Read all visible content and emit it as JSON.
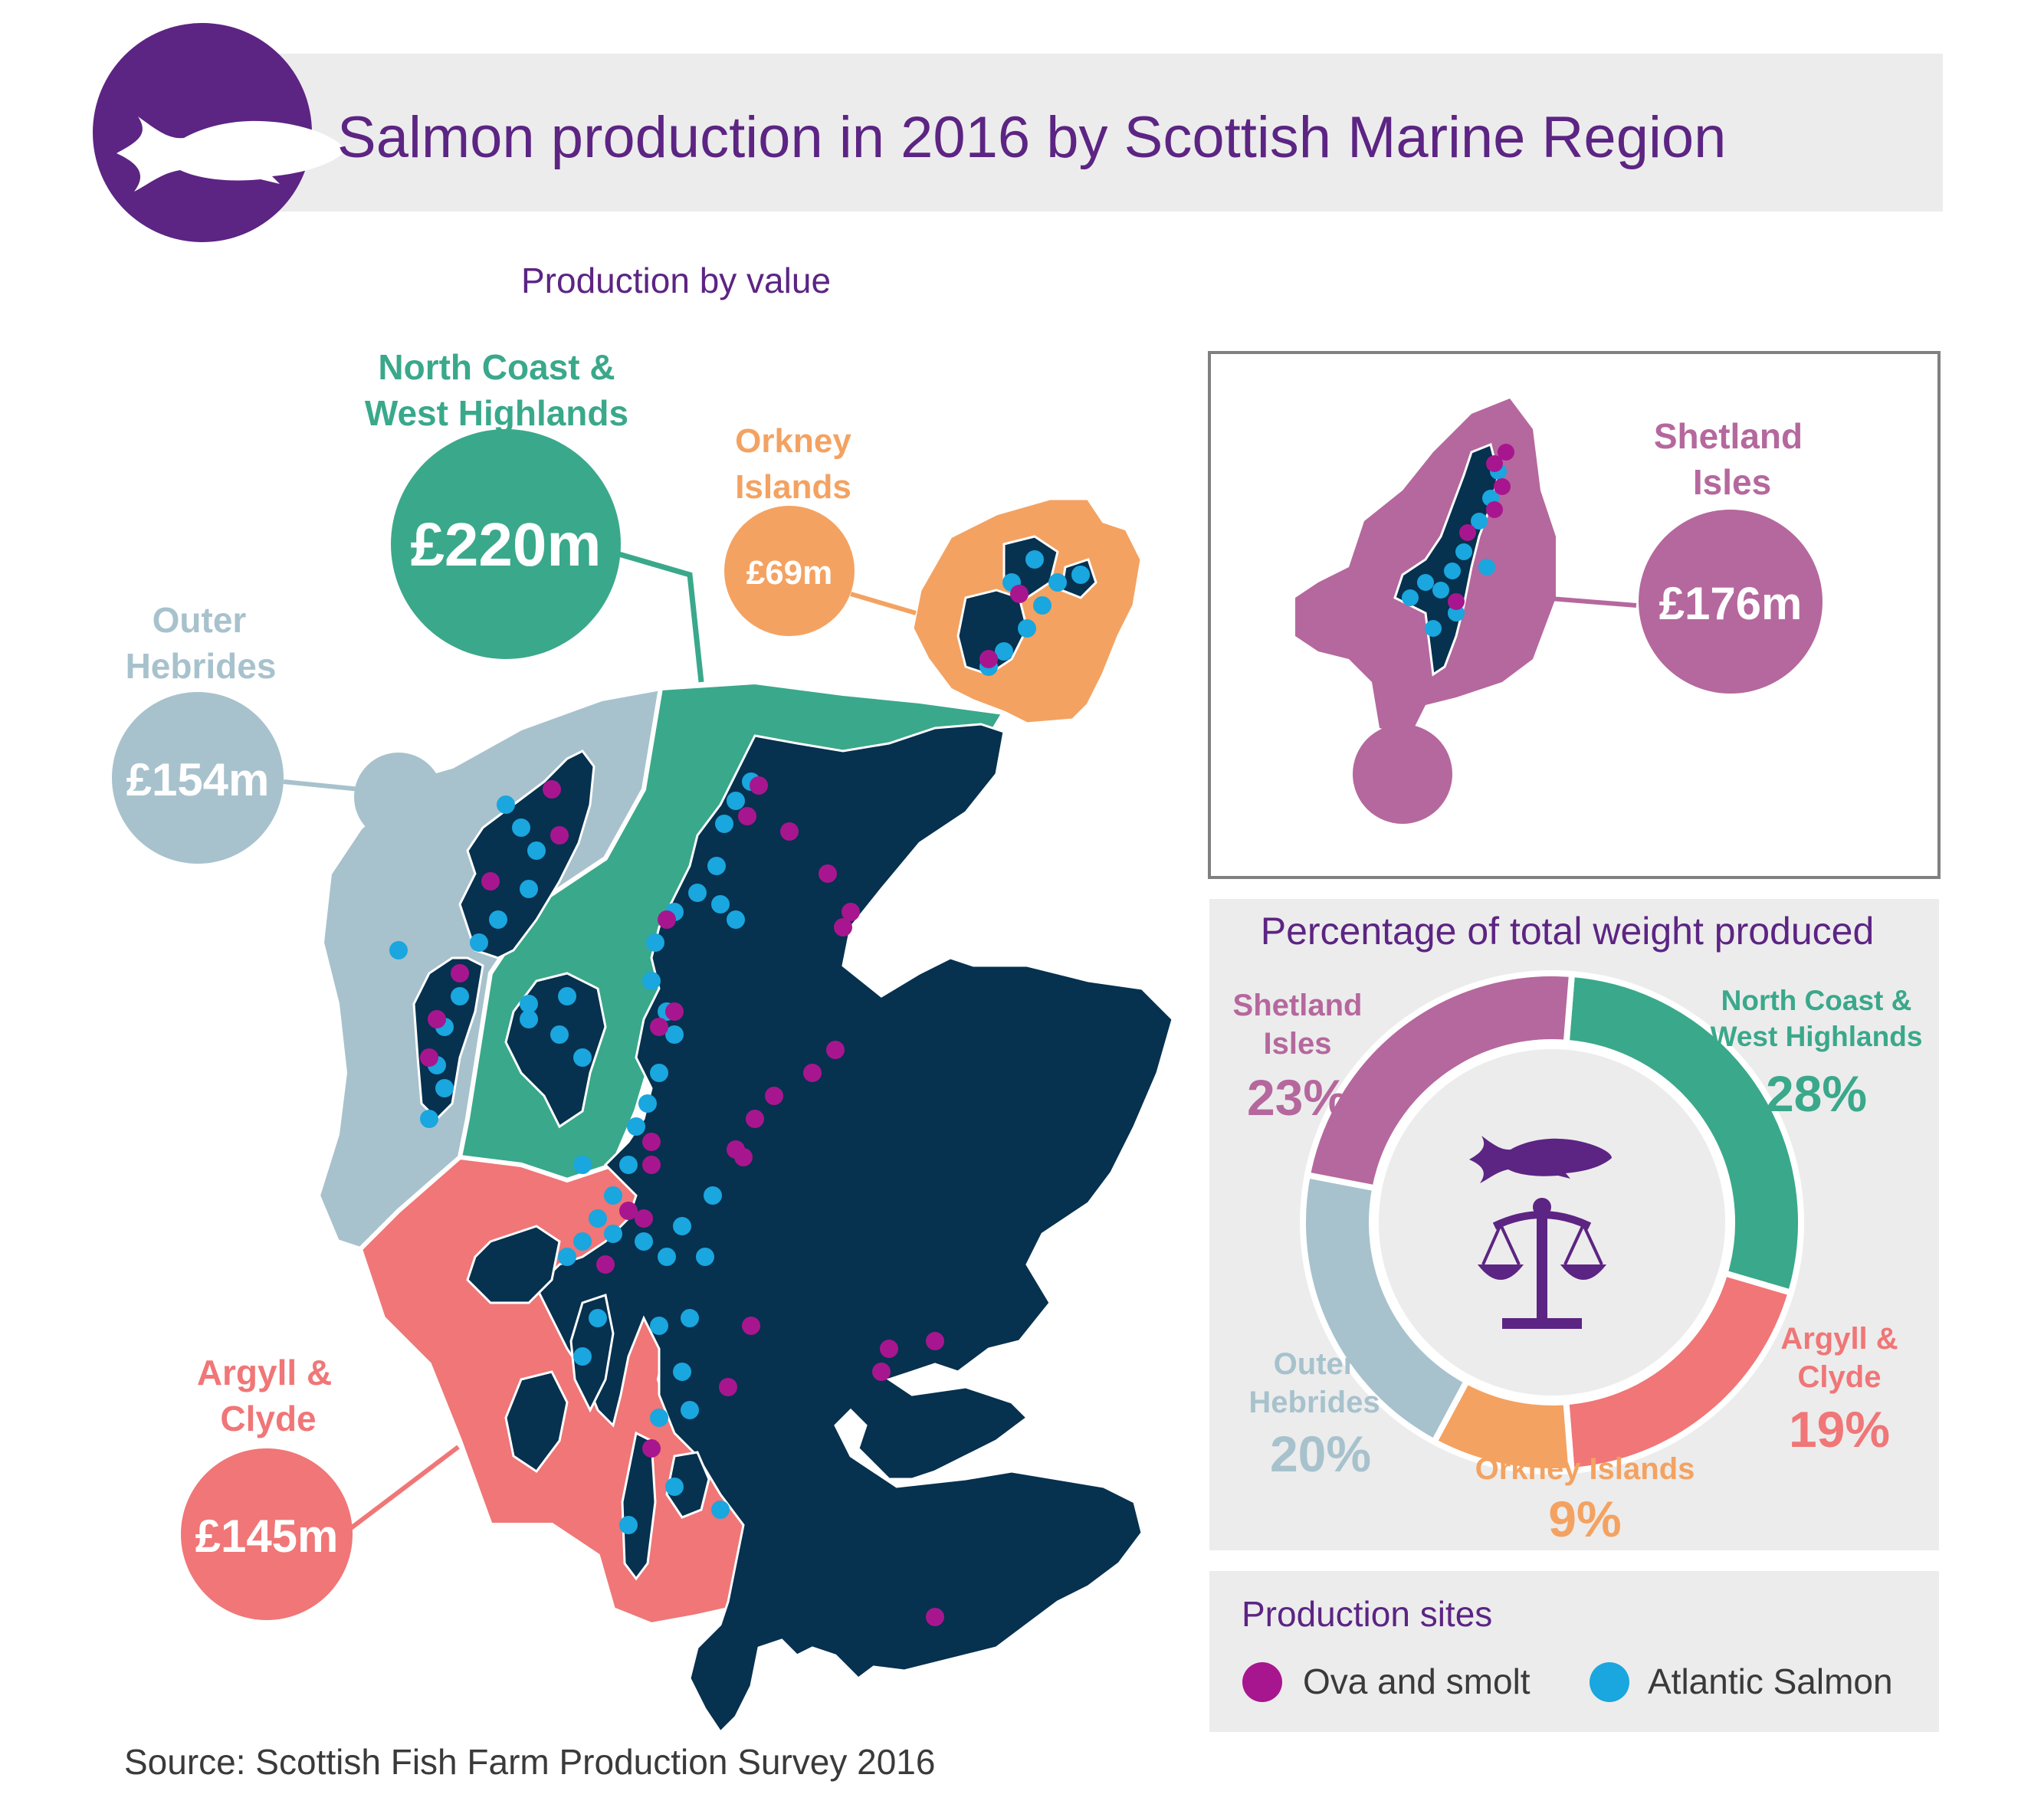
{
  "header": {
    "title": "Salmon production in 2016 by Scottish Marine Region",
    "icon": "salmon-fish-icon"
  },
  "value_section": {
    "heading": "Production by value"
  },
  "regions": {
    "north_coast": {
      "name_line1": "North Coast &",
      "name_line2": "West Highlands",
      "value": "£220m",
      "color": "#3aa88b"
    },
    "orkney": {
      "name_line1": "Orkney",
      "name_line2": "Islands",
      "value": "£69m",
      "color": "#f4a261"
    },
    "outer_hebrides": {
      "name_line1": "Outer",
      "name_line2": "Hebrides",
      "value": "£154m",
      "color": "#a7c2cd"
    },
    "argyll": {
      "name_line1": "Argyll &",
      "name_line2": "Clyde",
      "value": "£145m",
      "color": "#f07677"
    },
    "shetland": {
      "name_line1": "Shetland",
      "name_line2": "Isles",
      "value": "£176m",
      "color": "#b5689d"
    }
  },
  "weight_section": {
    "heading": "Percentage of total weight produced",
    "icons": [
      "salmon-fish-icon",
      "scales-icon"
    ],
    "labels": {
      "shetland": {
        "line1": "Shetland",
        "line2": "Isles",
        "pct": "23%"
      },
      "north_coast": {
        "line1": "North Coast &",
        "line2": "West Highlands",
        "pct": "28%"
      },
      "argyll": {
        "line1": "Argyll &",
        "line2": "Clyde",
        "pct": "19%"
      },
      "orkney": {
        "line1": "Orkney Islands",
        "pct": "9%"
      },
      "outer_hebrides": {
        "line1": "Outer",
        "line2": "Hebrides",
        "pct": "20%"
      }
    }
  },
  "chart_data": {
    "type": "pie",
    "title": "Percentage of total weight produced",
    "donut": true,
    "slices": [
      {
        "label": "North Coast & West Highlands",
        "value": 28,
        "color": "#3aa88b"
      },
      {
        "label": "Argyll & Clyde",
        "value": 19,
        "color": "#f07677"
      },
      {
        "label": "Orkney Islands",
        "value": 9,
        "color": "#f4a261"
      },
      {
        "label": "Outer Hebrides",
        "value": 20,
        "color": "#a7c2cd"
      },
      {
        "label": "Shetland Isles",
        "value": 23,
        "color": "#b5689d"
      }
    ],
    "start": "top-right of twelve o'clock, clockwise"
  },
  "legend": {
    "heading": "Production sites",
    "items": [
      {
        "label": "Ova and smolt",
        "color": "#a8168f"
      },
      {
        "label": "Atlantic Salmon",
        "color": "#1aa6de"
      }
    ]
  },
  "source": "Source: Scottish Fish Farm Production Survey 2016",
  "colors": {
    "title": "#5c2483",
    "land": "#06314f",
    "header_band": "#ececec",
    "panel": "#ececec"
  }
}
